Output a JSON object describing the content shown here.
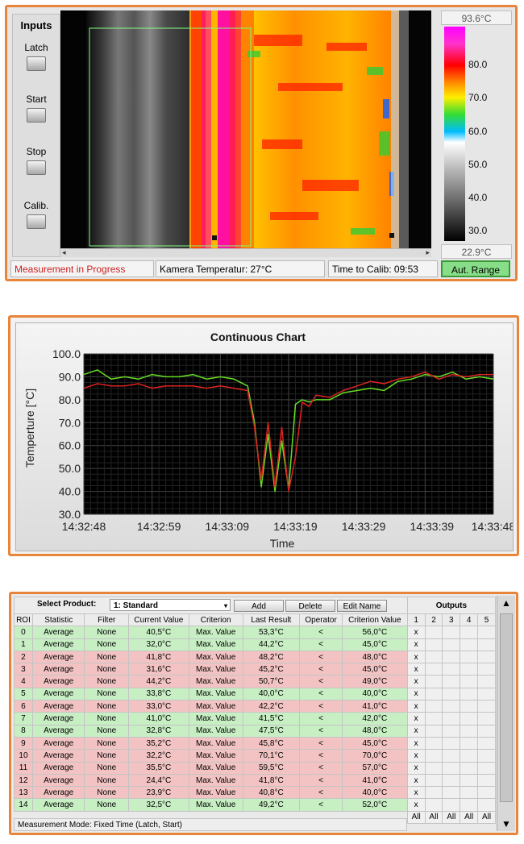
{
  "thermal_view": {
    "inputs": {
      "title": "Inputs",
      "buttons": [
        "Latch",
        "Start",
        "Stop",
        "Calib."
      ]
    },
    "scale": {
      "max_label": "93.6°C",
      "min_label": "22.9°C",
      "ticks": [
        "80.0",
        "70.0",
        "60.0",
        "50.0",
        "40.0",
        "30.0"
      ]
    },
    "status": {
      "measurement": "Measurement in Progress",
      "camera_temp": "Kamera Temperatur: 27°C",
      "calib_time": "Time to Calib: 09:53",
      "range_button": "Aut. Range"
    },
    "colors": {
      "status_text": "#cc2020",
      "range_bg": "#88dd88",
      "panel_border": "#e8853a"
    }
  },
  "chart_data": {
    "type": "line",
    "title": "Continuous Chart",
    "xlabel": "Time",
    "ylabel": "Temperture [°C]",
    "ylim": [
      30.0,
      100.0
    ],
    "yticks": [
      "100.0",
      "90.0",
      "80.0",
      "70.0",
      "60.0",
      "50.0",
      "40.0",
      "30.0"
    ],
    "xticks": [
      "14:32:48",
      "14:32:59",
      "14:33:09",
      "14:33:19",
      "14:33:29",
      "14:33:39",
      "14:33:48"
    ],
    "x": [
      "14:32:48",
      "14:32:50",
      "14:32:52",
      "14:32:54",
      "14:32:56",
      "14:32:58",
      "14:33:00",
      "14:33:02",
      "14:33:04",
      "14:33:06",
      "14:33:08",
      "14:33:10",
      "14:33:12",
      "14:33:13",
      "14:33:14",
      "14:33:15",
      "14:33:16",
      "14:33:17",
      "14:33:18",
      "14:33:19",
      "14:33:20",
      "14:33:21",
      "14:33:22",
      "14:33:24",
      "14:33:26",
      "14:33:28",
      "14:33:30",
      "14:33:32",
      "14:33:34",
      "14:33:36",
      "14:33:38",
      "14:33:40",
      "14:33:42",
      "14:33:44",
      "14:33:46",
      "14:33:48"
    ],
    "series": [
      {
        "color": "#66dd22",
        "values": [
          91,
          93,
          89,
          90,
          89,
          91,
          90,
          90,
          91,
          89,
          90,
          89,
          86,
          70,
          42,
          65,
          40,
          62,
          41,
          78,
          80,
          79,
          80,
          80,
          83,
          84,
          85,
          84,
          88,
          89,
          91,
          90,
          92,
          89,
          90,
          89
        ]
      },
      {
        "color": "#dd2222",
        "values": [
          85,
          87,
          86,
          86,
          87,
          85,
          86,
          86,
          86,
          85,
          86,
          85,
          84,
          68,
          45,
          70,
          42,
          68,
          40,
          55,
          79,
          77,
          82,
          81,
          84,
          86,
          88,
          87,
          89,
          90,
          92,
          89,
          91,
          90,
          91,
          91
        ]
      }
    ],
    "grid": true,
    "plot_background": "#000000"
  },
  "roi_table": {
    "select_label": "Select Product:",
    "product_value": "1: Standard",
    "buttons": {
      "add": "Add",
      "delete": "Delete",
      "edit": "Edit Name"
    },
    "outputs_label": "Outputs",
    "headers": [
      "ROI",
      "Statistic",
      "Filter",
      "Current Value",
      "Criterion",
      "Last Result",
      "Operator",
      "Criterion Value",
      "1",
      "2",
      "3",
      "4",
      "5"
    ],
    "rows": [
      {
        "roi": "0",
        "statistic": "Average",
        "filter": "None",
        "current": "40,5°C",
        "criterion": "Max. Value",
        "last": "53,3°C",
        "op": "<",
        "crit_value": "56,0°C",
        "out1": "x",
        "state": "ok"
      },
      {
        "roi": "1",
        "statistic": "Average",
        "filter": "None",
        "current": "32,0°C",
        "criterion": "Max. Value",
        "last": "44,2°C",
        "op": "<",
        "crit_value": "45,0°C",
        "out1": "x",
        "state": "ok"
      },
      {
        "roi": "2",
        "statistic": "Average",
        "filter": "None",
        "current": "41,8°C",
        "criterion": "Max. Value",
        "last": "48,2°C",
        "op": "<",
        "crit_value": "48,0°C",
        "out1": "x",
        "state": "bad"
      },
      {
        "roi": "3",
        "statistic": "Average",
        "filter": "None",
        "current": "31,6°C",
        "criterion": "Max. Value",
        "last": "45,2°C",
        "op": "<",
        "crit_value": "45,0°C",
        "out1": "x",
        "state": "bad"
      },
      {
        "roi": "4",
        "statistic": "Average",
        "filter": "None",
        "current": "44,2°C",
        "criterion": "Max. Value",
        "last": "50,7°C",
        "op": "<",
        "crit_value": "49,0°C",
        "out1": "x",
        "state": "bad"
      },
      {
        "roi": "5",
        "statistic": "Average",
        "filter": "None",
        "current": "33,8°C",
        "criterion": "Max. Value",
        "last": "40,0°C",
        "op": "<",
        "crit_value": "40,0°C",
        "out1": "x",
        "state": "ok"
      },
      {
        "roi": "6",
        "statistic": "Average",
        "filter": "None",
        "current": "33,0°C",
        "criterion": "Max. Value",
        "last": "42,2°C",
        "op": "<",
        "crit_value": "41,0°C",
        "out1": "x",
        "state": "bad"
      },
      {
        "roi": "7",
        "statistic": "Average",
        "filter": "None",
        "current": "41,0°C",
        "criterion": "Max. Value",
        "last": "41,5°C",
        "op": "<",
        "crit_value": "42,0°C",
        "out1": "x",
        "state": "ok"
      },
      {
        "roi": "8",
        "statistic": "Average",
        "filter": "None",
        "current": "32,8°C",
        "criterion": "Max. Value",
        "last": "47,5°C",
        "op": "<",
        "crit_value": "48,0°C",
        "out1": "x",
        "state": "ok"
      },
      {
        "roi": "9",
        "statistic": "Average",
        "filter": "None",
        "current": "35,2°C",
        "criterion": "Max. Value",
        "last": "45,8°C",
        "op": "<",
        "crit_value": "45,0°C",
        "out1": "x",
        "state": "bad"
      },
      {
        "roi": "10",
        "statistic": "Average",
        "filter": "None",
        "current": "32,2°C",
        "criterion": "Max. Value",
        "last": "70,1°C",
        "op": "<",
        "crit_value": "70,0°C",
        "out1": "x",
        "state": "bad"
      },
      {
        "roi": "11",
        "statistic": "Average",
        "filter": "None",
        "current": "35,5°C",
        "criterion": "Max. Value",
        "last": "59,5°C",
        "op": "<",
        "crit_value": "57,0°C",
        "out1": "x",
        "state": "bad"
      },
      {
        "roi": "12",
        "statistic": "Average",
        "filter": "None",
        "current": "24,4°C",
        "criterion": "Max. Value",
        "last": "41,8°C",
        "op": "<",
        "crit_value": "41,0°C",
        "out1": "x",
        "state": "bad"
      },
      {
        "roi": "13",
        "statistic": "Average",
        "filter": "None",
        "current": "23,9°C",
        "criterion": "Max. Value",
        "last": "40,8°C",
        "op": "<",
        "crit_value": "40,0°C",
        "out1": "x",
        "state": "bad"
      },
      {
        "roi": "14",
        "statistic": "Average",
        "filter": "None",
        "current": "32,5°C",
        "criterion": "Max. Value",
        "last": "49,2°C",
        "op": "<",
        "crit_value": "52,0°C",
        "out1": "x",
        "state": "ok"
      }
    ],
    "all_labels": [
      "All",
      "All",
      "All",
      "All",
      "All"
    ],
    "mode": "Measurement Mode: Fixed Time (Latch, Start)",
    "colors": {
      "ok": "#c7efc3",
      "bad": "#f3c3c3"
    }
  }
}
